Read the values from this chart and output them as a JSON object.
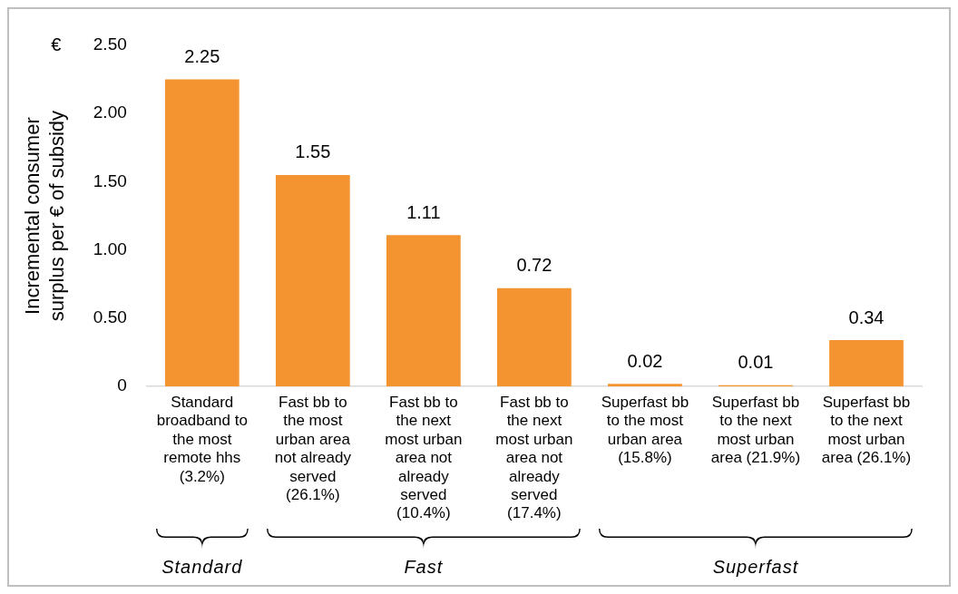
{
  "chart_data": {
    "type": "bar",
    "ylabel": "Incremental consumer surplus per € of subsidy",
    "categories": [
      "Standard broadband to the most remote hhs (3.2%)",
      "Fast bb to the most urban area not already served (26.1%)",
      "Fast bb to the next most urban area not already served (10.4%)",
      "Fast bb to the next most urban area not already served (17.4%)",
      "Superfast bb to the most urban area (15.8%)",
      "Superfast bb to the next most urban area (21.9%)",
      "Superfast bb to the next most urban area (26.1%)"
    ],
    "values": [
      2.25,
      1.55,
      1.11,
      0.72,
      0.02,
      0.01,
      0.34
    ],
    "color": "#f39430",
    "ylim": [
      0,
      2.5
    ],
    "yticks": [
      0,
      {
        "value": 0.5,
        "label": "0.50"
      },
      {
        "value": 1,
        "label": "1.00"
      },
      {
        "value": 1.5,
        "label": "1.50"
      },
      {
        "value": 2,
        "label": "2.00"
      },
      {
        "value": 2.5,
        "label": "2.50"
      }
    ],
    "grid": false,
    "legend": false,
    "data_labels": true,
    "annotations": [
      "€",
      "Standard",
      "Fast",
      "Superfast"
    ]
  }
}
